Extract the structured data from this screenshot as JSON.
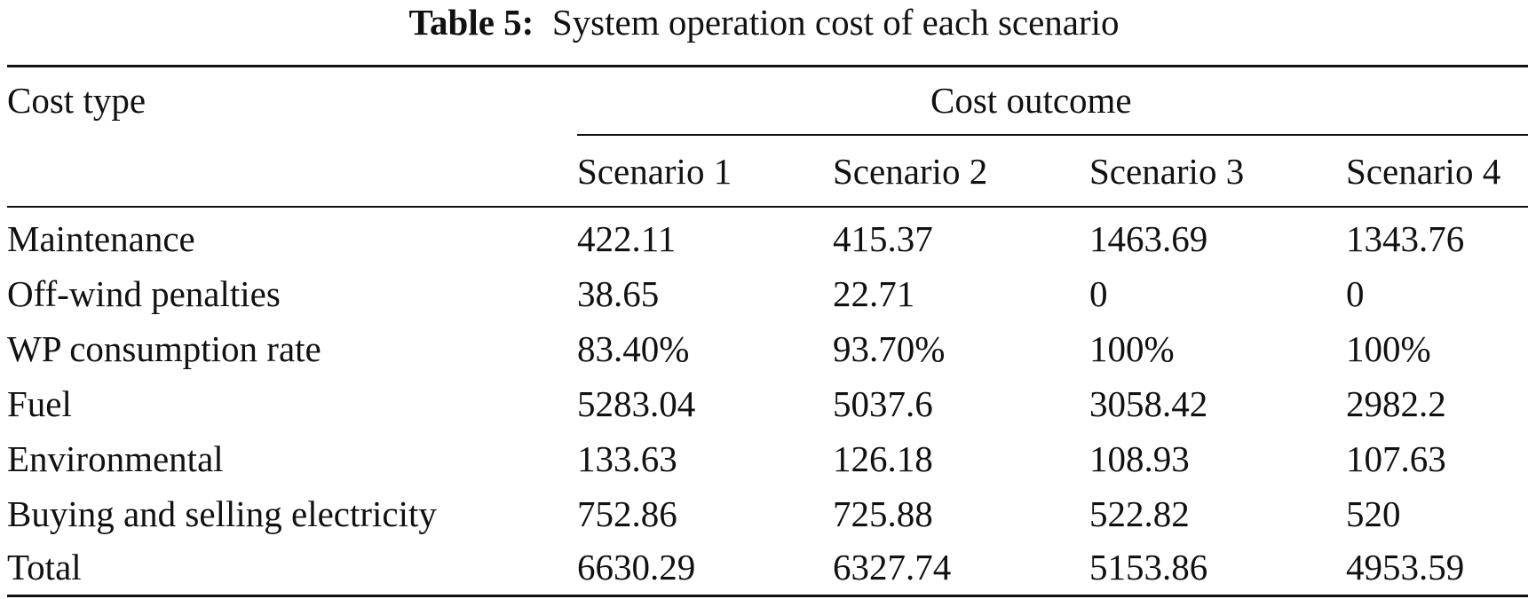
{
  "caption": {
    "label": "Table 5:",
    "text": "System operation cost of each scenario"
  },
  "table": {
    "row_header": "Cost type",
    "group_header": "Cost outcome",
    "columns": [
      "Scenario 1",
      "Scenario 2",
      "Scenario 3",
      "Scenario 4"
    ],
    "rows": [
      {
        "label": "Maintenance",
        "values": [
          "422.11",
          "415.37",
          "1463.69",
          "1343.76"
        ]
      },
      {
        "label": "Off-wind penalties",
        "values": [
          "38.65",
          "22.71",
          "0",
          "0"
        ]
      },
      {
        "label": "WP consumption rate",
        "values": [
          "83.40%",
          "93.70%",
          "100%",
          "100%"
        ]
      },
      {
        "label": "Fuel",
        "values": [
          "5283.04",
          "5037.6",
          "3058.42",
          "2982.2"
        ]
      },
      {
        "label": "Environmental",
        "values": [
          "133.63",
          "126.18",
          "108.93",
          "107.63"
        ]
      },
      {
        "label": "Buying and selling electricity",
        "values": [
          "752.86",
          "725.88",
          "522.82",
          "520"
        ]
      },
      {
        "label": "Total",
        "values": [
          "6630.29",
          "6327.74",
          "5153.86",
          "4953.59"
        ]
      }
    ]
  }
}
